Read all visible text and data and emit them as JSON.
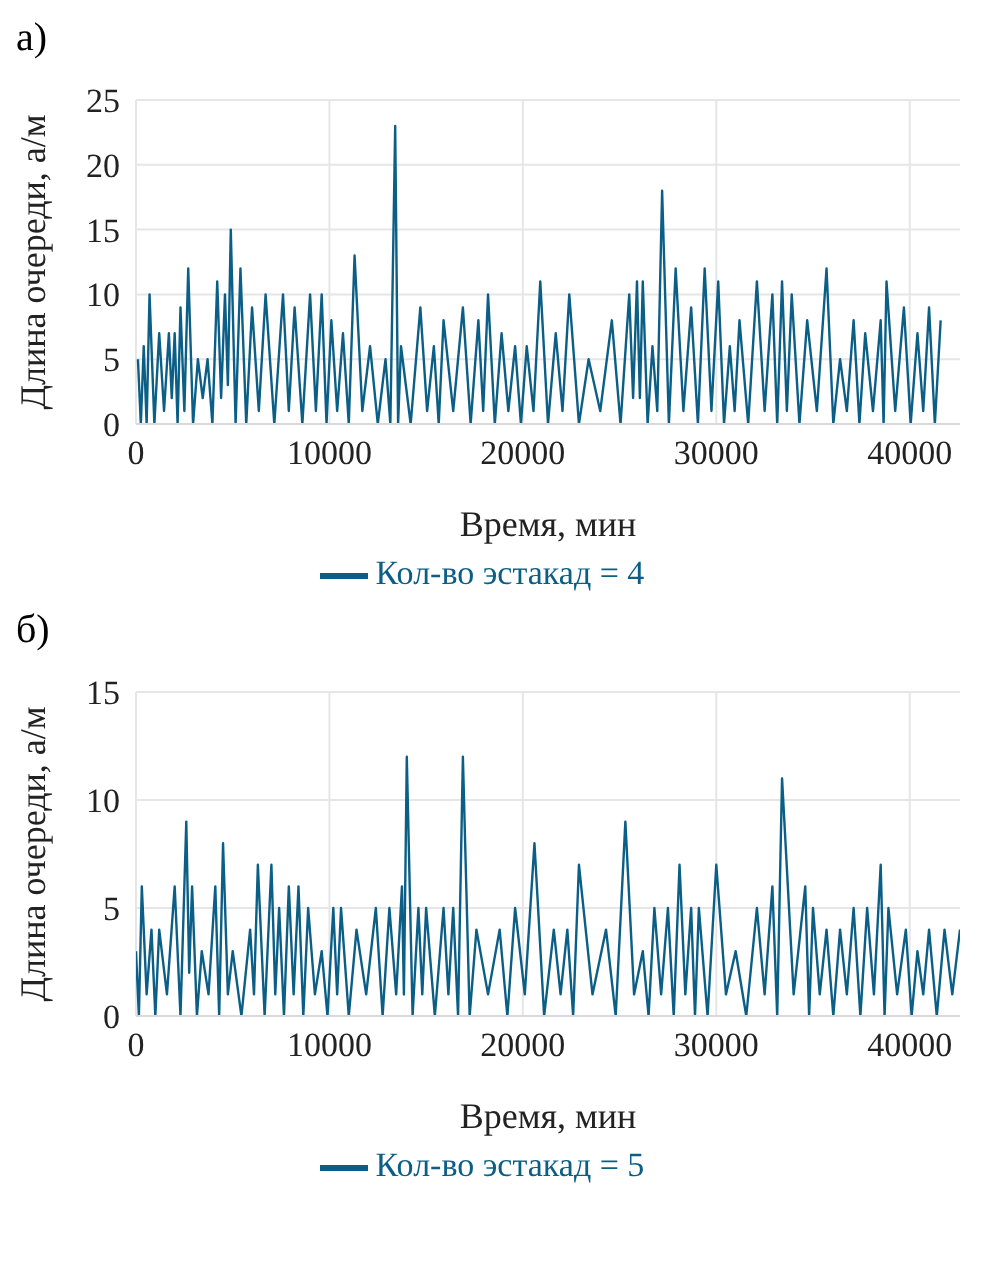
{
  "chart_data": [
    {
      "type": "line",
      "title": "а)",
      "xlabel": "Время, мин",
      "ylabel": "Длина очереди, а/м",
      "xlim": [
        0,
        42600
      ],
      "xticks": [
        0,
        10000,
        20000,
        30000,
        40000
      ],
      "ylim": [
        0,
        25
      ],
      "yticks": [
        0,
        5,
        10,
        15,
        20,
        25
      ],
      "grid": true,
      "legend": "bottom",
      "x": [
        100,
        250,
        400,
        550,
        700,
        950,
        1200,
        1450,
        1700,
        1850,
        2000,
        2150,
        2300,
        2500,
        2700,
        2950,
        3200,
        3450,
        3700,
        3950,
        4200,
        4400,
        4600,
        4750,
        4900,
        5150,
        5400,
        5700,
        6000,
        6350,
        6700,
        7150,
        7600,
        7900,
        8200,
        8600,
        9000,
        9300,
        9600,
        9850,
        10100,
        10400,
        10700,
        11000,
        11300,
        11700,
        12100,
        12500,
        12900,
        13150,
        13400,
        13550,
        13700,
        14200,
        14700,
        15050,
        15400,
        15650,
        15900,
        16400,
        16900,
        17300,
        17700,
        17950,
        18200,
        18550,
        18900,
        19250,
        19600,
        19900,
        20200,
        20550,
        20900,
        21300,
        21700,
        22050,
        22400,
        22900,
        23400,
        24000,
        24600,
        25050,
        25500,
        25700,
        25900,
        26050,
        26200,
        26450,
        26700,
        26950,
        27200,
        27550,
        27900,
        28300,
        28700,
        29050,
        29400,
        29750,
        30100,
        30400,
        30700,
        30950,
        31200,
        31650,
        32100,
        32500,
        32900,
        33150,
        33400,
        33650,
        33900,
        34300,
        34700,
        35200,
        35700,
        36050,
        36400,
        36750,
        37100,
        37400,
        37700,
        38100,
        38500,
        38650,
        38800,
        39250,
        39700,
        40050,
        40400,
        40700,
        41000,
        41300,
        41600
      ],
      "series": [
        {
          "name": "Кол-во эстакад = 4",
          "color": "#0b5e86",
          "values": [
            5,
            0,
            6,
            0,
            10,
            0,
            7,
            1,
            7,
            2,
            7,
            0,
            9,
            1,
            12,
            0,
            5,
            2,
            5,
            0,
            11,
            2,
            10,
            3,
            15,
            0,
            12,
            0,
            9,
            1,
            10,
            0,
            10,
            1,
            9,
            0,
            10,
            1,
            10,
            0,
            8,
            1,
            7,
            0,
            13,
            1,
            6,
            0,
            5,
            0,
            23,
            0,
            6,
            0,
            9,
            1,
            6,
            0,
            8,
            1,
            9,
            0,
            8,
            1,
            10,
            0,
            7,
            1,
            6,
            0,
            6,
            1,
            11,
            0,
            7,
            1,
            10,
            0,
            5,
            1,
            8,
            0,
            10,
            2,
            11,
            2,
            11,
            0,
            6,
            1,
            18,
            0,
            12,
            1,
            9,
            0,
            12,
            1,
            11,
            0,
            6,
            1,
            8,
            0,
            11,
            1,
            10,
            0,
            11,
            1,
            10,
            0,
            8,
            1,
            12,
            0,
            5,
            1,
            8,
            0,
            7,
            1,
            8,
            0,
            11,
            1,
            9,
            0,
            7,
            1,
            9,
            0,
            8
          ]
        }
      ]
    },
    {
      "type": "line",
      "title": "б)",
      "xlabel": "Время, мин",
      "ylabel": "Длина очереди, а/м",
      "xlim": [
        0,
        42600
      ],
      "xticks": [
        0,
        10000,
        20000,
        30000,
        40000
      ],
      "ylim": [
        0,
        15
      ],
      "yticks": [
        0,
        5,
        10,
        15
      ],
      "grid": true,
      "legend": "bottom",
      "x": [
        0,
        150,
        300,
        550,
        800,
        1000,
        1200,
        1600,
        2000,
        2300,
        2600,
        2750,
        2900,
        3150,
        3400,
        3750,
        4100,
        4300,
        4500,
        4750,
        5000,
        5450,
        5900,
        6100,
        6300,
        6650,
        7000,
        7200,
        7400,
        7650,
        7900,
        8150,
        8400,
        8650,
        8900,
        9250,
        9600,
        9900,
        10200,
        10400,
        10600,
        11000,
        11400,
        11900,
        12400,
        12750,
        13100,
        13450,
        13750,
        13850,
        14000,
        14300,
        14600,
        14800,
        15000,
        15450,
        15900,
        16150,
        16400,
        16650,
        16900,
        17250,
        17600,
        18200,
        18800,
        19200,
        19600,
        20100,
        20600,
        21100,
        21600,
        21950,
        22300,
        22600,
        22900,
        23600,
        24300,
        24800,
        25300,
        25750,
        26200,
        26500,
        26800,
        27150,
        27500,
        27800,
        28100,
        28400,
        28700,
        28900,
        29100,
        29550,
        30000,
        30500,
        31000,
        31550,
        32100,
        32500,
        32900,
        33150,
        33400,
        34000,
        34600,
        34800,
        35000,
        35350,
        35700,
        36050,
        36400,
        36750,
        37100,
        37450,
        37800,
        38150,
        38500,
        38700,
        38900,
        39350,
        39800,
        40100,
        40400,
        40700,
        41000,
        41400,
        41800,
        42200,
        42600
      ],
      "series": [
        {
          "name": "Кол-во эстакад = 5",
          "color": "#0b5e86",
          "values": [
            3,
            0,
            6,
            1,
            4,
            0,
            4,
            1,
            6,
            0,
            9,
            2,
            6,
            0,
            3,
            1,
            6,
            0,
            8,
            1,
            3,
            0,
            4,
            1,
            7,
            0,
            7,
            1,
            5,
            0,
            6,
            1,
            6,
            0,
            5,
            1,
            3,
            0,
            5,
            1,
            5,
            0,
            4,
            1,
            5,
            0,
            5,
            1,
            6,
            1,
            12,
            0,
            5,
            1,
            5,
            0,
            5,
            1,
            5,
            0,
            12,
            0,
            4,
            1,
            4,
            0,
            5,
            1,
            8,
            0,
            4,
            1,
            4,
            0,
            7,
            1,
            4,
            0,
            9,
            1,
            3,
            0,
            5,
            1,
            5,
            0,
            7,
            1,
            5,
            0,
            5,
            0,
            7,
            1,
            3,
            0,
            5,
            1,
            6,
            0,
            11,
            1,
            6,
            0,
            5,
            1,
            4,
            0,
            4,
            1,
            5,
            0,
            5,
            1,
            7,
            0,
            5,
            1,
            4,
            0,
            3,
            1,
            4,
            0,
            4,
            1,
            4
          ]
        }
      ]
    }
  ]
}
